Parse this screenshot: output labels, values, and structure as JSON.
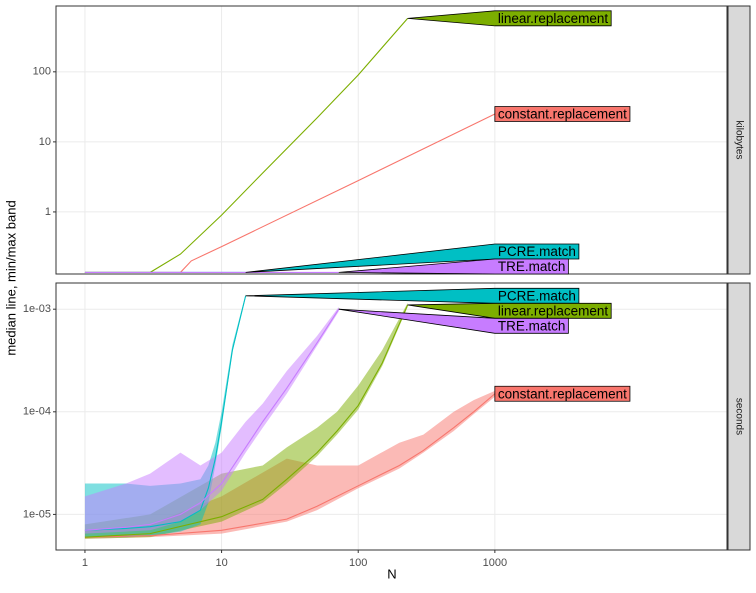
{
  "chart_data": {
    "type": "line",
    "x_label": "N",
    "y_label": "median line, min/max band",
    "xlim": [
      0.614,
      50000
    ],
    "xticks": [
      1,
      10,
      100,
      1000
    ],
    "log_x": true,
    "log_y": true,
    "grid": true,
    "panels": [
      {
        "strip": "kilobytes",
        "ylim": [
          0.13,
          870
        ],
        "yticks": [
          1,
          10,
          100
        ],
        "series": [
          {
            "name": "constant.replacement",
            "color": "#F8766D",
            "x": [
              1,
              5,
              6,
              10,
              100,
              1000
            ],
            "values": [
              0.137,
              0.137,
              0.2,
              0.32,
              2.8,
              25
            ]
          },
          {
            "name": "linear.replacement",
            "color": "#7CAE00",
            "x": [
              1,
              2,
              3,
              5,
              10,
              20,
              50,
              100,
              230
            ],
            "values": [
              0.137,
              0.137,
              0.137,
              0.25,
              0.9,
              3.6,
              22,
              90,
              580
            ]
          },
          {
            "name": "PCRE.match",
            "color": "#00BFC4",
            "x": [
              1,
              15
            ],
            "values": [
              0.137,
              0.137
            ]
          },
          {
            "name": "TRE.match",
            "color": "#C77CFF",
            "x": [
              1,
              72
            ],
            "values": [
              0.137,
              0.137
            ]
          }
        ]
      },
      {
        "strip": "seconds",
        "ylim": [
          4.5e-06,
          0.0018
        ],
        "yticks": [
          {
            "value": 1e-05,
            "label": "1e-05"
          },
          {
            "value": 0.0001,
            "label": "1e-04"
          },
          {
            "value": 0.001,
            "label": "1e-03"
          }
        ],
        "series": [
          {
            "name": "constant.replacement",
            "color": "#F8766D",
            "x": [
              1,
              3,
              10,
              30,
              50,
              100,
              200,
              300,
              500,
              700,
              1000
            ],
            "values": [
              6e-06,
              6.2e-06,
              7e-06,
              9e-06,
              1.2e-05,
              1.9e-05,
              3e-05,
              4.2e-05,
              7e-05,
              0.0001,
              0.00015
            ],
            "min": [
              5.8e-06,
              6e-06,
              6.5e-06,
              8.5e-06,
              1.1e-05,
              1.8e-05,
              2.8e-05,
              4e-05,
              6.5e-05,
              9.5e-05,
              0.00014
            ],
            "max": [
              7e-06,
              8e-06,
              1.5e-05,
              3.5e-05,
              3e-05,
              3e-05,
              5e-05,
              6e-05,
              0.0001,
              0.00013,
              0.00016
            ]
          },
          {
            "name": "linear.replacement",
            "color": "#7CAE00",
            "x": [
              1,
              3,
              10,
              20,
              30,
              50,
              70,
              100,
              150,
              230
            ],
            "values": [
              6e-06,
              6.5e-06,
              9.5e-06,
              1.4e-05,
              2.2e-05,
              4e-05,
              6.5e-05,
              0.000115,
              0.0003,
              0.0011
            ],
            "min": [
              5.8e-06,
              6e-06,
              8.5e-06,
              1.3e-05,
              2e-05,
              3.7e-05,
              6e-05,
              0.000105,
              0.00028,
              0.00105
            ],
            "max": [
              8e-06,
              1e-05,
              2.5e-05,
              3e-05,
              4.5e-05,
              7e-05,
              0.0001,
              0.00018,
              0.0004,
              0.00115
            ]
          },
          {
            "name": "PCRE.match",
            "color": "#00BFC4",
            "x": [
              1,
              2,
              3,
              5,
              7,
              8,
              9,
              10,
              12,
              15
            ],
            "values": [
              7e-06,
              7.3e-06,
              7.6e-06,
              8.5e-06,
              1.1e-05,
              1.8e-05,
              3.5e-05,
              8e-05,
              0.0004,
              0.00135
            ],
            "min": [
              6e-06,
              6e-06,
              6.2e-06,
              6.8e-06,
              8e-06,
              1.3e-05,
              3e-05,
              7e-05,
              0.00038,
              0.0013
            ],
            "max": [
              2e-05,
              2e-05,
              1.9e-05,
              2e-05,
              2.2e-05,
              3e-05,
              5e-05,
              0.0001,
              0.00045,
              0.0014
            ]
          },
          {
            "name": "TRE.match",
            "color": "#C77CFF",
            "x": [
              1,
              2,
              3,
              5,
              7,
              10,
              15,
              20,
              30,
              50,
              72
            ],
            "values": [
              7e-06,
              7.5e-06,
              8e-06,
              1e-05,
              1.3e-05,
              2e-05,
              4.5e-05,
              8e-05,
              0.00017,
              0.00047,
              0.001
            ],
            "min": [
              6.5e-06,
              6.8e-06,
              7e-06,
              8.5e-06,
              1.1e-05,
              1.7e-05,
              4e-05,
              7e-05,
              0.00015,
              0.00044,
              0.00095
            ],
            "max": [
              1.5e-05,
              2e-05,
              2.5e-05,
              4e-05,
              3e-05,
              4e-05,
              8e-05,
              0.00012,
              0.00025,
              0.00055,
              0.00105
            ]
          }
        ]
      }
    ]
  }
}
